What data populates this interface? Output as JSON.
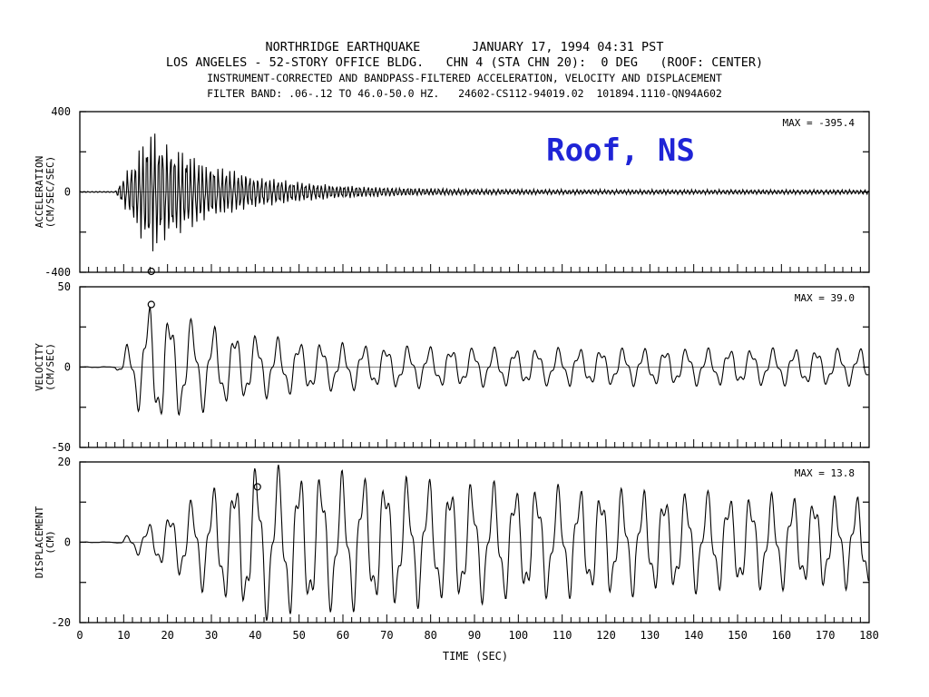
{
  "header": {
    "line1": "NORTHRIDGE EARTHQUAKE       JANUARY 17, 1994 04:31 PST",
    "line2": "LOS ANGELES - 52-STORY OFFICE BLDG.   CHN 4 (STA CHN 20):  0 DEG   (ROOF: CENTER)",
    "line3": "INSTRUMENT-CORRECTED AND BANDPASS-FILTERED ACCELERATION, VELOCITY AND DISPLACEMENT",
    "line4": "FILTER BAND: .06-.12 TO 46.0-50.0 HZ.   24602-CS112-94019.02  101894.1110-QN94A602"
  },
  "overlay_label": "Roof, NS",
  "colors": {
    "trace": "#000000",
    "overlay": "#1f24d6"
  },
  "chart_data": [
    {
      "type": "line",
      "ylabel_line1": "ACCELERATION",
      "ylabel_line2": "(CM/SEC/SEC)",
      "ylim": [
        -400,
        400
      ],
      "yticks": [
        "400",
        "0",
        "-400"
      ],
      "xlim": [
        0,
        180
      ],
      "max_label": "MAX = -395.4",
      "peak": {
        "x": 16.3,
        "y": -395.4
      },
      "trace_params": {
        "onset": 8,
        "peak_time": 16,
        "period": 0.9,
        "amplitude": 300,
        "decay": 0.06,
        "tail": 12,
        "seed": 11
      }
    },
    {
      "type": "line",
      "ylabel_line1": "VELOCITY",
      "ylabel_line2": "(CM/SEC)",
      "ylim": [
        -50,
        50
      ],
      "yticks": [
        "50",
        "0",
        "-50"
      ],
      "xlim": [
        0,
        180
      ],
      "max_label": "MAX = 39.0",
      "peak": {
        "x": 16.3,
        "y": 39.0
      },
      "trace_params": {
        "onset": 8,
        "peak_time": 16,
        "period": 4.9,
        "amplitude": 30,
        "decay": 0.05,
        "tail": 12,
        "seed": 23
      }
    },
    {
      "type": "line",
      "ylabel_line1": "DISPLACEMENT",
      "ylabel_line2": "(CM)",
      "ylim": [
        -20,
        20
      ],
      "yticks": [
        "20",
        "0",
        "-20"
      ],
      "xlim": [
        0,
        180
      ],
      "max_label": "MAX = 13.8",
      "peak": {
        "x": 40.5,
        "y": 13.8
      },
      "trace_params": {
        "onset": 8,
        "peak_time": 40,
        "period": 4.9,
        "amplitude": 11,
        "decay": 0.01,
        "tail": 9,
        "seed": 37
      }
    }
  ],
  "xaxis": {
    "label": "TIME (SEC)",
    "ticks": [
      "0",
      "10",
      "20",
      "30",
      "40",
      "50",
      "60",
      "70",
      "80",
      "90",
      "100",
      "110",
      "120",
      "130",
      "140",
      "150",
      "160",
      "170",
      "180"
    ]
  }
}
